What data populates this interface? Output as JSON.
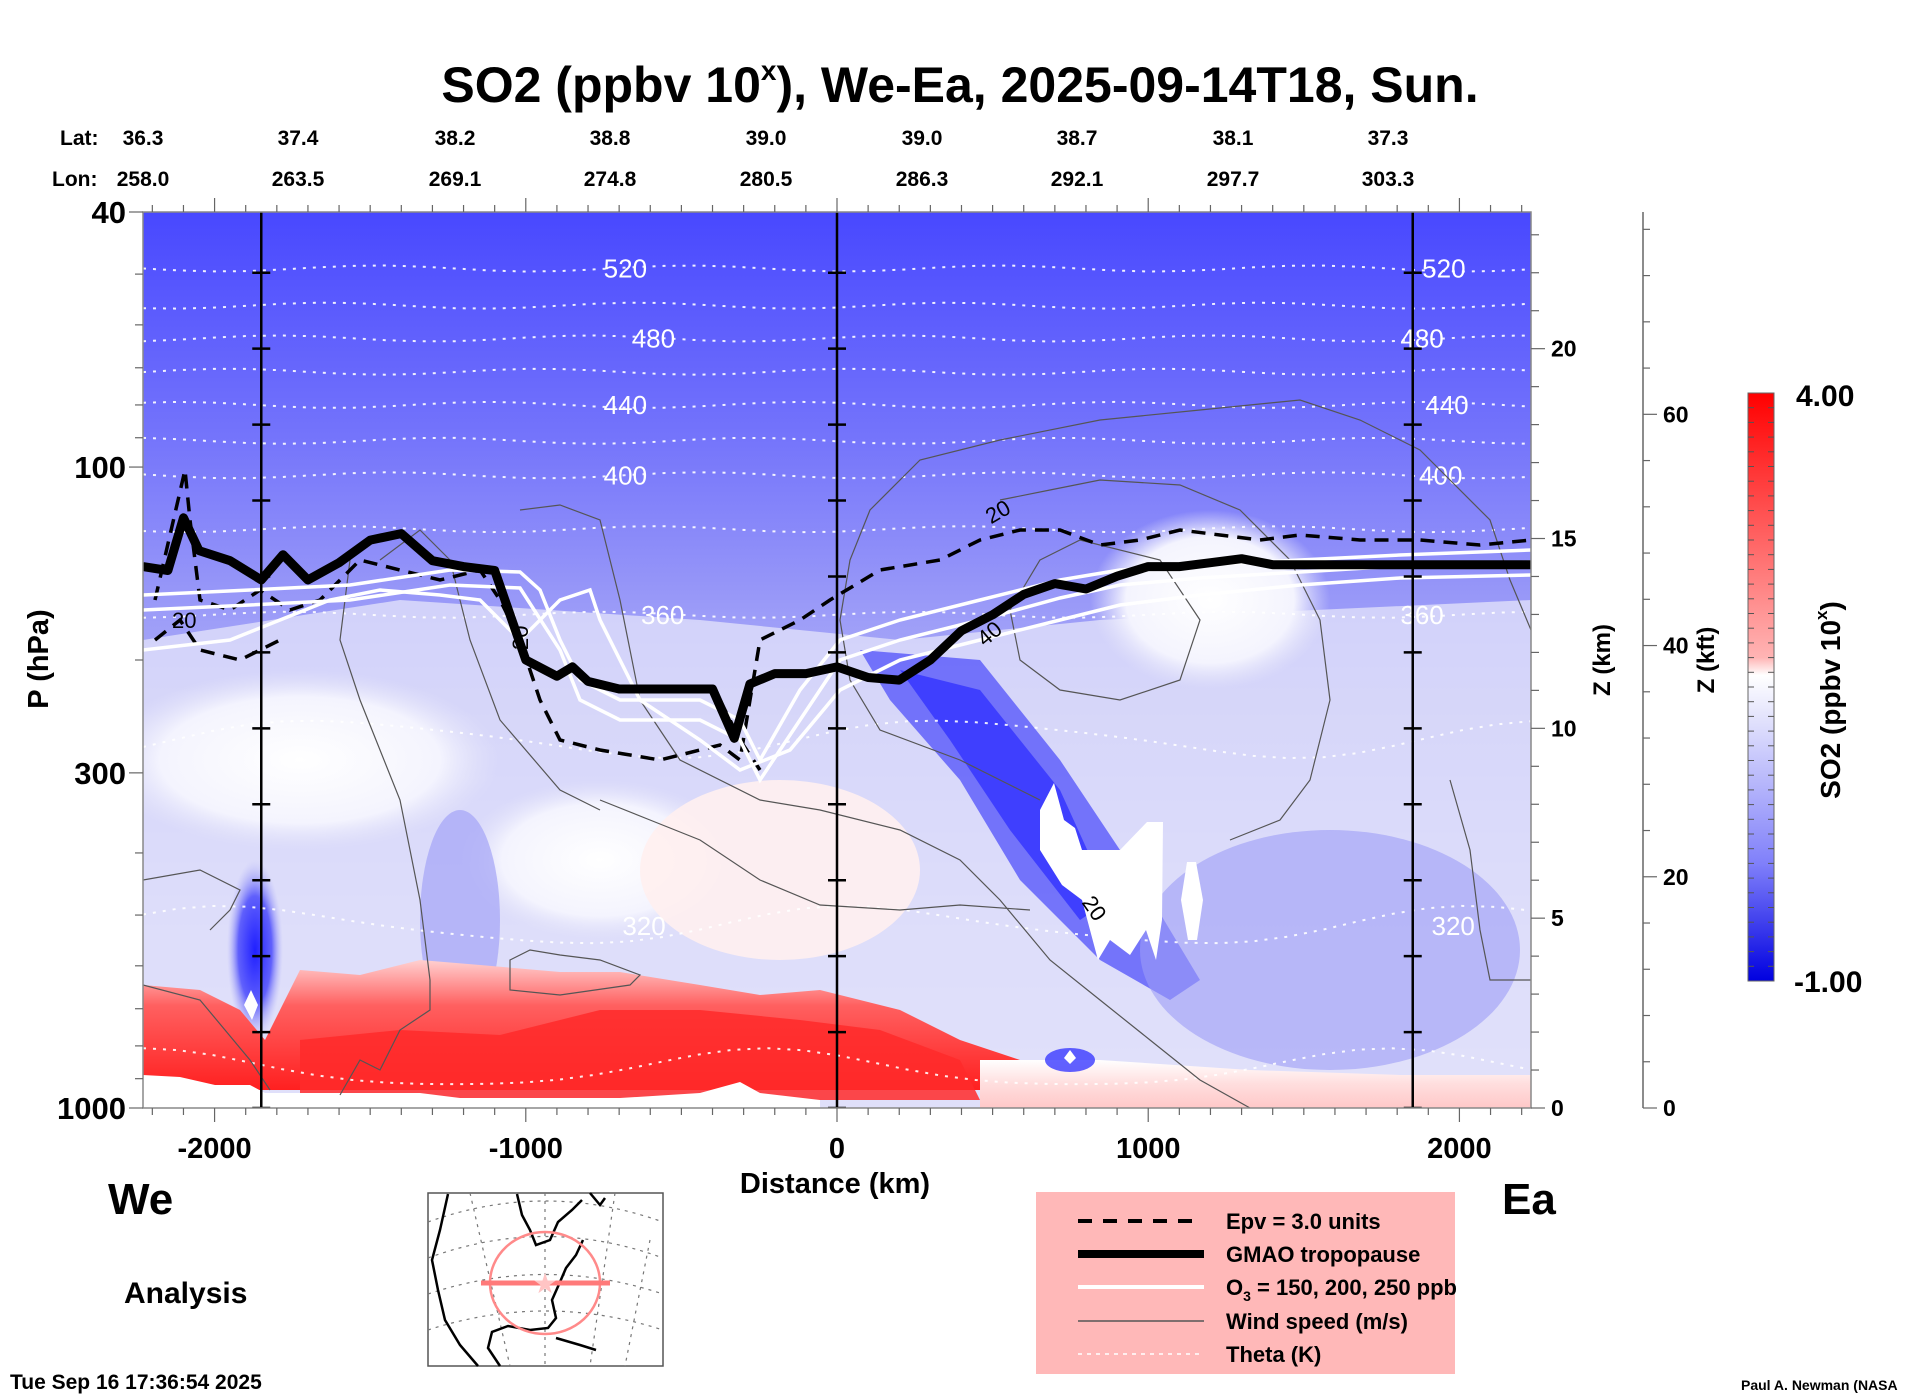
{
  "chart_data": {
    "type": "heatmap",
    "subtype": "vertical cross-section",
    "title": "SO2 (ppbv 10",
    "title_superscript": "x",
    "title_suffix": "), We-Ea, 2025-09-14T18, Sun.",
    "xlabel": "Distance (km)",
    "ylabel": "P (hPa)",
    "xlim": [
      -2230,
      2230
    ],
    "ylim": [
      1000,
      40
    ],
    "yscale": "log",
    "x_ticks": [
      -2000,
      -1000,
      0,
      1000,
      2000
    ],
    "x_tick_labels": [
      "-2000",
      "-1000",
      "0",
      "1000",
      "2000"
    ],
    "y_ticks": [
      40,
      100,
      300,
      1000
    ],
    "y_tick_labels": [
      "40",
      "100",
      "300",
      "1000"
    ],
    "z_km_axis": {
      "label": "Z (km)",
      "ticks": [
        0,
        5,
        10,
        15,
        20
      ],
      "max": 23.6
    },
    "z_kft_axis": {
      "label": "Z (kft)",
      "ticks": [
        0,
        20,
        40,
        60
      ],
      "max": 77.5
    },
    "lat_label": "Lat:",
    "lon_label": "Lon:",
    "lat_values": [
      "36.3",
      "37.4",
      "38.2",
      "38.8",
      "39.0",
      "39.0",
      "38.7",
      "38.1",
      "37.3"
    ],
    "lon_values": [
      "258.0",
      "263.5",
      "269.1",
      "274.8",
      "280.5",
      "286.3",
      "292.1",
      "297.7",
      "303.3"
    ],
    "reference_lines_km": [
      -1850,
      0,
      1850
    ],
    "colorbar": {
      "label": "SO2 (ppbv 10",
      "label_superscript": "x",
      "label_suffix": ")",
      "min": -1.0,
      "max": 4.0,
      "min_label": "-1.00",
      "max_label": "4.00",
      "low_color": "#0000ff",
      "mid_color": "#ffffff",
      "high_color": "#ff0000",
      "mid_value": 1.6
    },
    "theta_contours_K": [
      {
        "value": 520,
        "p_hPa": 49,
        "label_at_km": [
          -680,
          1950
        ]
      },
      {
        "value": 500,
        "p_hPa": 56
      },
      {
        "value": 480,
        "p_hPa": 63,
        "label_at_km": [
          -590,
          1880
        ]
      },
      {
        "value": 460,
        "p_hPa": 71
      },
      {
        "value": 440,
        "p_hPa": 80,
        "label_at_km": [
          -680,
          1960
        ]
      },
      {
        "value": 420,
        "p_hPa": 91
      },
      {
        "value": 400,
        "p_hPa": 103,
        "label_at_km": [
          -680,
          1940
        ]
      },
      {
        "value": 380,
        "p_hPa": 125
      },
      {
        "value": 360,
        "p_hPa": 170,
        "label_at_km": [
          -560,
          1880
        ]
      },
      {
        "value": 340,
        "p_hPa": 265
      },
      {
        "value": 320,
        "p_hPa": 520,
        "label_at_km": [
          -620,
          1980
        ]
      },
      {
        "value": 300,
        "p_hPa": 870
      }
    ],
    "tropopause_hPa": {
      "x_km": [
        -2230,
        -2150,
        -2100,
        -2050,
        -1950,
        -1850,
        -1780,
        -1700,
        -1600,
        -1500,
        -1400,
        -1300,
        -1200,
        -1100,
        -1000,
        -900,
        -850,
        -800,
        -700,
        -600,
        -500,
        -400,
        -330,
        -280,
        -200,
        -100,
        0,
        100,
        200,
        300,
        400,
        500,
        600,
        700,
        800,
        900,
        1000,
        1100,
        1200,
        1300,
        1400,
        1600,
        1800,
        2000,
        2230
      ],
      "p": [
        143,
        145,
        120,
        135,
        140,
        150,
        137,
        150,
        141,
        130,
        127,
        140,
        143,
        145,
        200,
        212,
        205,
        216,
        222,
        222,
        222,
        222,
        265,
        218,
        210,
        210,
        205,
        213,
        215,
        200,
        180,
        170,
        158,
        152,
        155,
        148,
        143,
        143,
        141,
        139,
        142,
        142,
        142,
        142,
        142
      ]
    },
    "ozone_contours_ppb": [
      150,
      200,
      250
    ],
    "epv_contour_units": 3.0,
    "wind_speed_labels_ms": [
      "20",
      "20",
      "20",
      "40",
      "20"
    ],
    "analysis_label": "Analysis",
    "west_label": "We",
    "east_label": "Ea"
  },
  "legend": {
    "items": [
      {
        "label": "Epv = 3.0 units",
        "style": "dashed-black"
      },
      {
        "label": "GMAO tropopause",
        "style": "thick-black"
      },
      {
        "label_prefix": "O",
        "label_sub": "3",
        "label_suffix": " = 150, 200, 250 ppb",
        "style": "white"
      },
      {
        "label": "Wind speed (m/s)",
        "style": "thin-gray"
      },
      {
        "label": "Theta (K)",
        "style": "dotted-white"
      }
    ],
    "background": "#ffb8b8"
  },
  "footer": {
    "timestamp": "Tue Sep 16 17:36:54 2025",
    "attribution": "Paul A. Newman (NASA"
  },
  "inset_map": {
    "name": "location map",
    "marker_color": "#ff8080"
  }
}
